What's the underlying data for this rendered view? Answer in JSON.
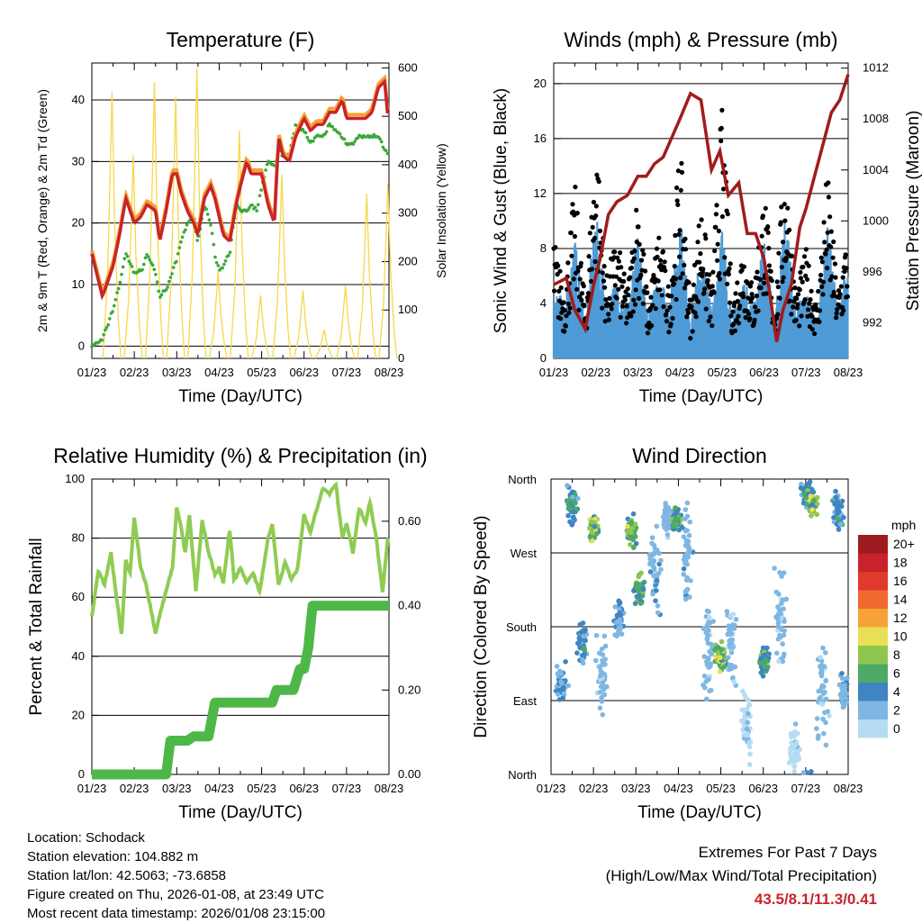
{
  "x_ticks": [
    "01/23",
    "02/23",
    "03/23",
    "04/23",
    "05/23",
    "06/23",
    "07/23",
    "08/23"
  ],
  "colors": {
    "temp_red": "#c8232c",
    "temp_orange": "#f5a030",
    "dewpoint": "#3aa83a",
    "solar": "#f6d84a",
    "gust": "#000000",
    "wind": "#4f9bd6",
    "pressure": "#a01c1c",
    "rh": "#8fcc52",
    "rain": "#4db848",
    "extreme": "#c8232c"
  },
  "chart_data": [
    {
      "type": "line",
      "title": "Temperature (F)",
      "xlabel": "Time (Day/UTC)",
      "ylabel": "2m & 9m T (Red, Orange) & 2m Td (Green)",
      "ylabel_right": "Solar Insolation (Yellow)",
      "ylim": [
        -2,
        46
      ],
      "ylim_right": [
        0,
        610
      ],
      "yticks": [
        "0",
        "10",
        "20",
        "30",
        "40"
      ],
      "yticks_right": [
        "0",
        "100",
        "200",
        "300",
        "400",
        "500",
        "600"
      ],
      "x": [
        0,
        0.5,
        1,
        1.3,
        1.6,
        2,
        2.3,
        2.6,
        3,
        3.2,
        3.5,
        3.8,
        4,
        4.2,
        4.5,
        4.8,
        5,
        5.3,
        5.6,
        5.8,
        6,
        6.2,
        6.5,
        6.8,
        7,
        7.3,
        7.5,
        7.8,
        8,
        8.3,
        8.6,
        8.8,
        9,
        9.3,
        9.6,
        10,
        10.3,
        10.6,
        10.9,
        11.2,
        11.5,
        11.8,
        12,
        12.3,
        12.6,
        12.9,
        13.2,
        13.5,
        13.8,
        14
      ],
      "series": [
        {
          "name": "2m T",
          "values": [
            15,
            8,
            13,
            18,
            24,
            20,
            21,
            23,
            22,
            17,
            22,
            28,
            28,
            25,
            22,
            20,
            18,
            24,
            26,
            24,
            21,
            18,
            17,
            23,
            26,
            30,
            28,
            28,
            28,
            23,
            20,
            34,
            31,
            30,
            34,
            37,
            35,
            36,
            36,
            38,
            38,
            40,
            37,
            37,
            37,
            37,
            38,
            42,
            43,
            35
          ]
        },
        {
          "name": "2m Td",
          "values": [
            0,
            1,
            6,
            10,
            15,
            12,
            12,
            15,
            12,
            8,
            9,
            12,
            14,
            17,
            20,
            21,
            17,
            23,
            20,
            15,
            12,
            13,
            15,
            23,
            22,
            22,
            23,
            22,
            26,
            30,
            29,
            32,
            31,
            31,
            36,
            35,
            33,
            34,
            34,
            36,
            35,
            34,
            33,
            33,
            34,
            34,
            34,
            34,
            32,
            31
          ]
        }
      ],
      "solar": [
        {
          "day": 1,
          "value": 550
        },
        {
          "day": 2,
          "value": 420
        },
        {
          "day": 3,
          "value": 570
        },
        {
          "day": 4,
          "value": 540
        },
        {
          "day": 5,
          "value": 600
        },
        {
          "day": 6,
          "value": 180
        },
        {
          "day": 7,
          "value": 470
        },
        {
          "day": 8,
          "value": 130
        },
        {
          "day": 9,
          "value": 380
        },
        {
          "day": 10,
          "value": 140
        },
        {
          "day": 11,
          "value": 60
        },
        {
          "day": 12,
          "value": 150
        },
        {
          "day": 13,
          "value": 340
        },
        {
          "day": 14,
          "value": 360
        }
      ]
    },
    {
      "type": "scatter",
      "title": "Winds (mph) & Pressure (mb)",
      "xlabel": "Time (Day/UTC)",
      "ylabel": "Sonic Wind & Gust (Blue, Black)",
      "ylabel_right": "Station Pressure (Maroon)",
      "ylim": [
        0,
        21.5
      ],
      "ylim_right": [
        989.2,
        1012.4
      ],
      "yticks": [
        "0",
        "4",
        "8",
        "12",
        "16",
        "20"
      ],
      "yticks_right": [
        "992",
        "996",
        "1000",
        "1004",
        "1008",
        "1012"
      ],
      "series": [
        {
          "name": "Wind peaks",
          "values": [
            6,
            4,
            9,
            3,
            11,
            4,
            6,
            4,
            9,
            3,
            7,
            4,
            11,
            3,
            8,
            4,
            10,
            3,
            6,
            4,
            9,
            3,
            11,
            4,
            5,
            3,
            10,
            4,
            7
          ]
        },
        {
          "name": "Gust peaks",
          "values": [
            9,
            5,
            13,
            4,
            17,
            6,
            9,
            5,
            13,
            4,
            10,
            5,
            16,
            4,
            12,
            5,
            19,
            4,
            9,
            5,
            13,
            4,
            15,
            5,
            8,
            4,
            14,
            5,
            10
          ]
        },
        {
          "name": "Pressure",
          "x": [
            0,
            0.6,
            1,
            1.5,
            1.9,
            2.2,
            2.6,
            3,
            3.5,
            4,
            4.4,
            4.8,
            5.2,
            5.6,
            6,
            6.5,
            7,
            7.5,
            7.9,
            8.3,
            8.8,
            9.2,
            9.6,
            10,
            10.3,
            10.6,
            10.9,
            11.3,
            11.7,
            12,
            12.4,
            12.8,
            13.2,
            13.6,
            14
          ],
          "values": [
            995,
            995.5,
            993,
            991.5,
            995,
            997,
            1000.5,
            1001.5,
            1002,
            1003.5,
            1003.5,
            1004.5,
            1005,
            1006.5,
            1008,
            1010,
            1009.5,
            1004,
            1005.5,
            1002,
            1003,
            999,
            999,
            997,
            994,
            990.5,
            993,
            995,
            999.5,
            1001,
            1003.5,
            1006,
            1008.5,
            1009.5,
            1011.5
          ]
        }
      ]
    },
    {
      "type": "line",
      "title": "Relative Humidity (%) & Precipitation (in)",
      "xlabel": "Time (Day/UTC)",
      "ylabel": "Percent & Total Rainfall",
      "ylim": [
        0,
        100
      ],
      "ylim_right": [
        0,
        0.7
      ],
      "yticks": [
        "0",
        "20",
        "40",
        "60",
        "80",
        "100"
      ],
      "yticks_right": [
        "0.00",
        "0.20",
        "0.40",
        "0.60"
      ],
      "series": [
        {
          "name": "Relative Humidity",
          "x": [
            0,
            0.3,
            0.6,
            0.9,
            1.2,
            1.4,
            1.6,
            1.8,
            2,
            2.3,
            2.6,
            2.8,
            3,
            3.2,
            3.5,
            3.8,
            4,
            4.2,
            4.4,
            4.6,
            4.9,
            5.2,
            5.5,
            5.8,
            6,
            6.2,
            6.5,
            6.7,
            7,
            7.3,
            7.6,
            7.9,
            8.1,
            8.3,
            8.5,
            8.8,
            9.1,
            9.4,
            9.7,
            10,
            10.3,
            10.6,
            10.9,
            11.2,
            11.5,
            11.8,
            12,
            12.3,
            12.6,
            12.9,
            13.1,
            13.4,
            13.7,
            14
          ],
          "values": [
            53,
            69,
            64,
            75,
            58,
            47,
            72,
            68,
            87,
            70,
            63,
            55,
            48,
            54,
            62,
            70,
            90,
            84,
            75,
            88,
            62,
            86,
            75,
            68,
            70,
            65,
            83,
            66,
            70,
            65,
            68,
            62,
            70,
            80,
            85,
            64,
            72,
            66,
            70,
            88,
            82,
            90,
            97,
            95,
            98,
            80,
            85,
            75,
            90,
            85,
            92,
            80,
            62,
            84
          ]
        },
        {
          "name": "Total Rainfall",
          "x": [
            0,
            3.5,
            3.7,
            4.5,
            4.8,
            5.5,
            5.8,
            7.2,
            7.5,
            8.5,
            8.7,
            9.2,
            9.5,
            9.8,
            10,
            10.2,
            10.4,
            10.6,
            10.8,
            11,
            11.2,
            11.4,
            11.6,
            11.8,
            12,
            12.2,
            12.4,
            14
          ],
          "values": [
            0,
            0,
            0.08,
            0.08,
            0.09,
            0.09,
            0.17,
            0.17,
            0.17,
            0.17,
            0.2,
            0.2,
            0.2,
            0.25,
            0.25,
            0.3,
            0.4,
            0.4,
            0.4,
            0.4,
            0.4,
            0.4,
            0.4,
            0.4,
            0.4,
            0.4,
            0.4,
            0.4
          ]
        }
      ]
    },
    {
      "type": "scatter",
      "title": "Wind Direction",
      "xlabel": "Time (Day/UTC)",
      "ylabel": "Direction (Colored By Speed)",
      "ylim": [
        0,
        360
      ],
      "yticks": [
        "North",
        "East",
        "South",
        "West",
        "North"
      ],
      "clusters": [
        {
          "day": 0.5,
          "dir": 110,
          "spread": 30,
          "speed": 4
        },
        {
          "day": 1.0,
          "dir": 330,
          "spread": 30,
          "speed": 6
        },
        {
          "day": 1.5,
          "dir": 160,
          "spread": 40,
          "speed": 5
        },
        {
          "day": 2.0,
          "dir": 300,
          "spread": 25,
          "speed": 10
        },
        {
          "day": 2.4,
          "dir": 120,
          "spread": 60,
          "speed": 2
        },
        {
          "day": 3.2,
          "dir": 190,
          "spread": 40,
          "speed": 4
        },
        {
          "day": 3.8,
          "dir": 295,
          "spread": 25,
          "speed": 9
        },
        {
          "day": 4.2,
          "dir": 225,
          "spread": 30,
          "speed": 7
        },
        {
          "day": 4.9,
          "dir": 240,
          "spread": 80,
          "speed": 3
        },
        {
          "day": 5.5,
          "dir": 310,
          "spread": 25,
          "speed": 2
        },
        {
          "day": 5.9,
          "dir": 310,
          "spread": 20,
          "speed": 8
        },
        {
          "day": 6.4,
          "dir": 270,
          "spread": 90,
          "speed": 3
        },
        {
          "day": 7.4,
          "dir": 150,
          "spread": 90,
          "speed": 2
        },
        {
          "day": 8.0,
          "dir": 145,
          "spread": 25,
          "speed": 10
        },
        {
          "day": 8.5,
          "dir": 160,
          "spread": 80,
          "speed": 2
        },
        {
          "day": 9.2,
          "dir": 60,
          "spread": 60,
          "speed": 1
        },
        {
          "day": 10.0,
          "dir": 140,
          "spread": 25,
          "speed": 7
        },
        {
          "day": 10.8,
          "dir": 200,
          "spread": 90,
          "speed": 2
        },
        {
          "day": 11.5,
          "dir": 30,
          "spread": 40,
          "speed": 1
        },
        {
          "day": 12.0,
          "dir": 345,
          "spread": 25,
          "speed": 6
        },
        {
          "day": 12.3,
          "dir": 330,
          "spread": 20,
          "speed": 9
        },
        {
          "day": 12.8,
          "dir": 100,
          "spread": 90,
          "speed": 2
        },
        {
          "day": 13.5,
          "dir": 320,
          "spread": 30,
          "speed": 5
        },
        {
          "day": 13.8,
          "dir": 100,
          "spread": 30,
          "speed": 3
        }
      ],
      "legend_title": "mph",
      "legend_labels": [
        "20+",
        "18",
        "16",
        "14",
        "12",
        "10",
        "8",
        "6",
        "4",
        "2",
        "0"
      ],
      "legend_colors": [
        "#9b1b1e",
        "#c8232c",
        "#e03a2c",
        "#ef6a2e",
        "#f7a239",
        "#e8e155",
        "#8fc64f",
        "#4daa66",
        "#3e85c2",
        "#7fb7e2",
        "#b6dcf3"
      ]
    }
  ],
  "info_lines": [
    "Location: Schodack",
    "Station elevation: 104.882 m",
    "Station lat/lon: 42.5063; -73.6858",
    "Figure created on Thu, 2026-01-08, at 23:49 UTC",
    "Most recent data timestamp: 2026/01/08 23:15:00"
  ],
  "extremes": {
    "title": "Extremes For Past 7 Days",
    "subtitle": "(High/Low/Max Wind/Total Precipitation)",
    "value": "43.5/8.1/11.3/0.41"
  }
}
